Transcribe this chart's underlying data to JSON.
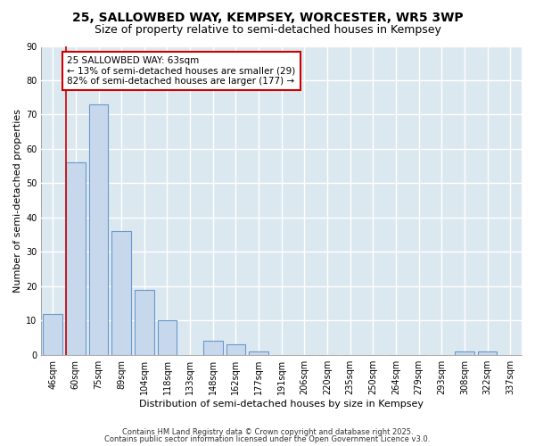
{
  "title1": "25, SALLOWBED WAY, KEMPSEY, WORCESTER, WR5 3WP",
  "title2": "Size of property relative to semi-detached houses in Kempsey",
  "xlabel": "Distribution of semi-detached houses by size in Kempsey",
  "ylabel": "Number of semi-detached properties",
  "categories": [
    "46sqm",
    "60sqm",
    "75sqm",
    "89sqm",
    "104sqm",
    "118sqm",
    "133sqm",
    "148sqm",
    "162sqm",
    "177sqm",
    "191sqm",
    "206sqm",
    "220sqm",
    "235sqm",
    "250sqm",
    "264sqm",
    "279sqm",
    "293sqm",
    "308sqm",
    "322sqm",
    "337sqm"
  ],
  "values": [
    12,
    56,
    73,
    36,
    19,
    10,
    0,
    4,
    3,
    1,
    0,
    0,
    0,
    0,
    0,
    0,
    0,
    0,
    1,
    1,
    0
  ],
  "bar_color": "#c8d8ec",
  "bar_edge_color": "#6699cc",
  "plot_bg_color": "#dce8f0",
  "fig_bg_color": "#ffffff",
  "grid_color": "#ffffff",
  "vline_color": "#cc0000",
  "vline_x": 0.575,
  "annotation_text": "25 SALLOWBED WAY: 63sqm\n← 13% of semi-detached houses are smaller (29)\n82% of semi-detached houses are larger (177) →",
  "annotation_box_facecolor": "#ffffff",
  "annotation_box_edgecolor": "#cc0000",
  "ylim": [
    0,
    90
  ],
  "yticks": [
    0,
    10,
    20,
    30,
    40,
    50,
    60,
    70,
    80,
    90
  ],
  "footer1": "Contains HM Land Registry data © Crown copyright and database right 2025.",
  "footer2": "Contains public sector information licensed under the Open Government Licence v3.0.",
  "title1_fontsize": 10,
  "title2_fontsize": 9,
  "ylabel_fontsize": 8,
  "xlabel_fontsize": 8,
  "tick_fontsize": 7,
  "annot_fontsize": 7.5,
  "footer_fontsize": 6
}
